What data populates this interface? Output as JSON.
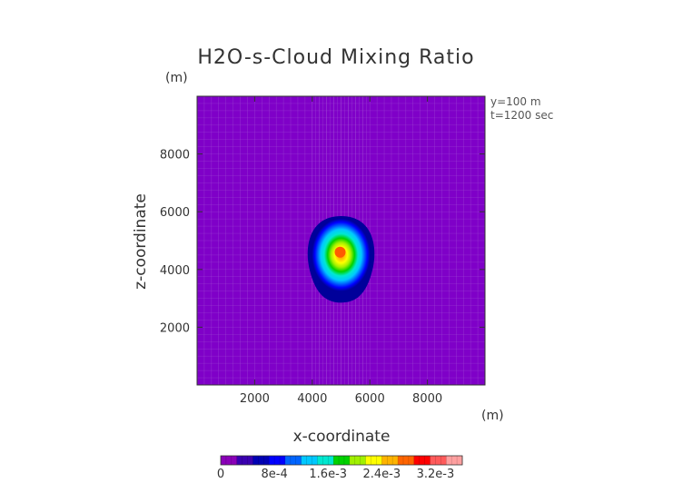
{
  "chart_data": {
    "type": "heatmap",
    "title": "H2O-s-Cloud Mixing Ratio",
    "xlabel": "x-coordinate",
    "ylabel": "z-coordinate",
    "x_unit": "(m)",
    "y_unit": "(m)",
    "xlim": [
      0,
      10000
    ],
    "ylim": [
      0,
      10000
    ],
    "xticks": [
      "2000",
      "4000",
      "6000",
      "8000"
    ],
    "xtick_values": [
      2000,
      4000,
      6000,
      8000
    ],
    "yticks": [
      "2000",
      "4000",
      "6000",
      "8000"
    ],
    "ytick_values": [
      2000,
      4000,
      6000,
      8000
    ],
    "annotations": [
      "y=100 m",
      "t=1200 sec"
    ],
    "background_color": "#7f00c8",
    "cloud": {
      "center_x": 5000,
      "center_z": 4600,
      "peak_value": 0.0028,
      "outer_contour_value": 0.0001,
      "top_z": 5850,
      "bottom_z": 2850,
      "half_width_x": 1150
    },
    "colorbar": {
      "min": 0,
      "max": 0.0036,
      "tick_labels": [
        "0",
        "8e-4",
        "1.6e-3",
        "2.4e-3",
        "3.2e-3"
      ],
      "tick_values": [
        0,
        0.0008,
        0.0016,
        0.0024,
        0.0032
      ],
      "colors": [
        "#8a00b8",
        "#3a00b0",
        "#0000b4",
        "#0000ff",
        "#0064ff",
        "#00c8ff",
        "#00e8d0",
        "#00d200",
        "#a0f000",
        "#ffff00",
        "#ffb400",
        "#ff6400",
        "#ff0000",
        "#ff5a5a",
        "#ffa0a0"
      ]
    }
  }
}
